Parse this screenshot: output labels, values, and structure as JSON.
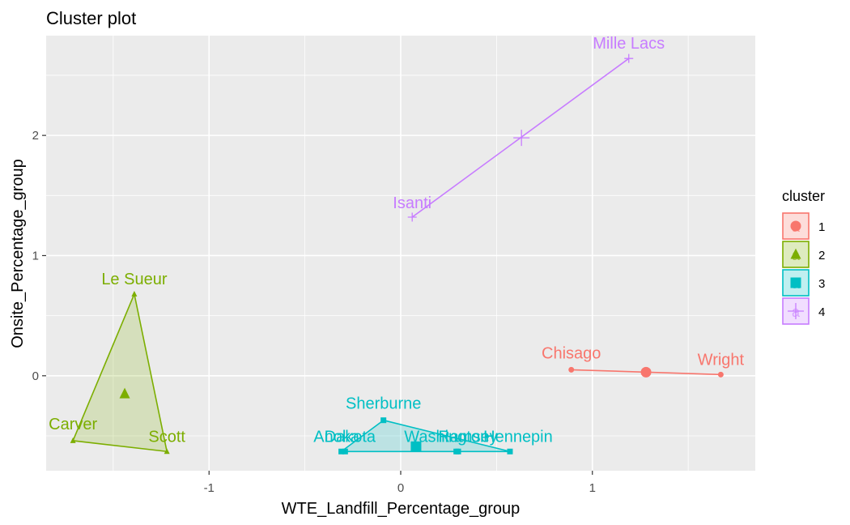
{
  "chart_data": {
    "type": "scatter",
    "title": "Cluster plot",
    "xlabel": "WTE_Landfill_Percentage_group",
    "ylabel": "Onsite_Percentage_group",
    "xlim": [
      -1.85,
      1.85
    ],
    "ylim": [
      -0.79,
      2.83
    ],
    "x_ticks": [
      -1,
      0,
      1
    ],
    "y_ticks": [
      0,
      1,
      2
    ],
    "grid": true,
    "legend": {
      "title": "cluster",
      "position": "right",
      "entries": [
        {
          "label": "1",
          "color": "#F8766D",
          "shape": "circle"
        },
        {
          "label": "2",
          "color": "#7CAE00",
          "shape": "triangle"
        },
        {
          "label": "3",
          "color": "#00BFC4",
          "shape": "square"
        },
        {
          "label": "4",
          "color": "#C77CFF",
          "shape": "plus"
        }
      ]
    },
    "clusters": [
      {
        "name": "1",
        "color": "#F8766D",
        "shape": "circle",
        "points": [
          {
            "label": "Chisago",
            "x": 0.89,
            "y": 0.05
          },
          {
            "label": "Wright",
            "x": 1.67,
            "y": 0.01
          }
        ],
        "center": {
          "x": 1.28,
          "y": 0.03
        },
        "hull": [
          "Chisago",
          "Wright"
        ]
      },
      {
        "name": "2",
        "color": "#7CAE00",
        "shape": "triangle",
        "points": [
          {
            "label": "Le Sueur",
            "x": -1.39,
            "y": 0.68
          },
          {
            "label": "Carver",
            "x": -1.71,
            "y": -0.54
          },
          {
            "label": "Scott",
            "x": -1.22,
            "y": -0.63
          }
        ],
        "center": {
          "x": -1.44,
          "y": -0.15
        },
        "hull": [
          "Le Sueur",
          "Carver",
          "Scott"
        ]
      },
      {
        "name": "3",
        "color": "#00BFC4",
        "shape": "square",
        "points": [
          {
            "label": "Sherburne",
            "x": -0.09,
            "y": -0.37
          },
          {
            "label": "Anoka",
            "x": -0.31,
            "y": -0.63
          },
          {
            "label": "Dakota",
            "x": -0.29,
            "y": -0.63
          },
          {
            "label": "Washington",
            "x": 0.29,
            "y": -0.63
          },
          {
            "label": "Ramsey",
            "x": 0.3,
            "y": -0.63
          },
          {
            "label": "Hennepin",
            "x": 0.57,
            "y": -0.63
          }
        ],
        "center": {
          "x": 0.08,
          "y": -0.59
        },
        "hull": [
          "Sherburne",
          "Hennepin",
          "Anoka"
        ]
      },
      {
        "name": "4",
        "color": "#C77CFF",
        "shape": "plus",
        "points": [
          {
            "label": "Isanti",
            "x": 0.06,
            "y": 1.32
          },
          {
            "label": "Mille Lacs",
            "x": 1.19,
            "y": 2.64
          }
        ],
        "center": {
          "x": 0.63,
          "y": 1.98
        },
        "hull": [
          "Isanti",
          "Mille Lacs"
        ]
      }
    ]
  }
}
